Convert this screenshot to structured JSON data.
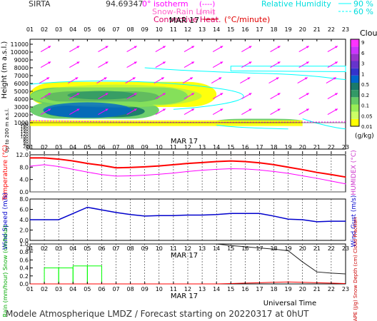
{
  "header": {
    "station": "SIRTA",
    "coord": "94.69347",
    "legend_isotherm": "0° isotherm",
    "legend_isotherm_dash": "(----)",
    "legend_snow": "Snow-Rain Limit",
    "legend_snow_dash": "(----)",
    "legend_conv": "Convective Heat.",
    "legend_conv_unit": "(°C/minute)",
    "legend_rh": "Relative Humidity",
    "legend_rh_90": "90 %",
    "legend_rh_60": "60 %"
  },
  "footer": {
    "title": "Modele Atmospherique LMDZ / Forecast starting on 20220317 at 0hUT",
    "universal_time": "Universal Time"
  },
  "colors": {
    "magenta": "#ff00ff",
    "cyan": "#00ffff",
    "red": "#ff0000",
    "blue": "#0000cc",
    "green": "#00ff00",
    "cloud_scale": [
      "#ffff00",
      "#ccff66",
      "#99ee55",
      "#66cc66",
      "#339966",
      "#1a7a6a",
      "#0066cc",
      "#3333cc",
      "#6633cc",
      "#9933cc",
      "#cc33ff",
      "#ff33ff"
    ]
  },
  "chart_data": [
    {
      "type": "heatmap",
      "panel": "clouds",
      "date_label": "MAR 17",
      "ylabel": "Height (m a.s.l.)",
      "ylabel_extra": "Up to 200 m a.s.l.",
      "x_ticks": [
        "01",
        "02",
        "03",
        "04",
        "05",
        "06",
        "07",
        "08",
        "09",
        "10",
        "11",
        "12",
        "13",
        "14",
        "15",
        "16",
        "17",
        "18",
        "19",
        "20",
        "21",
        "22",
        "23"
      ],
      "y_ticks_upper": [
        "11000",
        "10000",
        "9000",
        "8000",
        "7000",
        "6000",
        "5000",
        "4000",
        "3000",
        "2000",
        "1000"
      ],
      "y_ticks_lower": [
        "200",
        "180",
        "160",
        "140",
        "120",
        "100",
        "80",
        "60",
        "40",
        "20",
        "0"
      ],
      "colorbar_title": "Clouds",
      "colorbar_labels": [
        "9",
        "6",
        "3",
        "1",
        "0.5",
        "0.2",
        "0.1",
        "0.05",
        "0.01"
      ],
      "colorbar_unit": "(g/kg)",
      "cloud_layers": [
        {
          "hours": [
            1,
            14
          ],
          "height_m": [
            3000,
            6200
          ],
          "level": "0.01"
        },
        {
          "hours": [
            1,
            12
          ],
          "height_m": [
            3300,
            5500
          ],
          "level": "0.05"
        },
        {
          "hours": [
            2,
            10
          ],
          "height_m": [
            3600,
            5000
          ],
          "level": "0.2"
        },
        {
          "hours": [
            1,
            10
          ],
          "height_m": [
            1500,
            3700
          ],
          "level": "0.05"
        },
        {
          "hours": [
            2,
            9
          ],
          "height_m": [
            1700,
            3200
          ],
          "level": "0.2"
        },
        {
          "hours": [
            14,
            20
          ],
          "height_m": [
            900,
            1500
          ],
          "level": "0.05"
        }
      ]
    },
    {
      "type": "line",
      "panel": "temperature",
      "ylabel": "Temperature (°C)",
      "ylabel_right": "HUMIDEX (°C)",
      "y_ticks": [
        "12.0",
        "8.0",
        "4.0",
        "0.0"
      ],
      "ylim": [
        0,
        12
      ],
      "x": [
        1,
        2,
        3,
        4,
        5,
        6,
        7,
        8,
        9,
        10,
        11,
        12,
        13,
        14,
        15,
        16,
        17,
        18,
        19,
        20,
        21,
        22,
        23
      ],
      "series": [
        {
          "name": "Temperature",
          "values": [
            11.0,
            11.0,
            10.6,
            10.0,
            9.2,
            8.6,
            7.8,
            7.9,
            8.1,
            8.4,
            8.8,
            9.2,
            9.5,
            9.8,
            10.0,
            9.8,
            9.4,
            8.8,
            8.0,
            7.2,
            6.3,
            5.6,
            4.8
          ]
        },
        {
          "name": "HUMIDEX",
          "values": [
            8.3,
            8.8,
            8.2,
            7.3,
            6.4,
            5.6,
            5.1,
            5.2,
            5.4,
            5.7,
            6.1,
            6.6,
            7.0,
            7.3,
            7.5,
            7.4,
            7.1,
            6.6,
            6.0,
            5.2,
            4.4,
            3.5,
            2.6
          ]
        }
      ]
    },
    {
      "type": "line",
      "panel": "wind",
      "ylabel": "Wind Speed (m/s)",
      "ylabel_right": "Wind Gust (m/s)",
      "y_ticks": [
        "8.0",
        "6.0",
        "4.0",
        "2.0",
        "0.0"
      ],
      "ylim": [
        0,
        8
      ],
      "x": [
        1,
        2,
        3,
        4,
        5,
        6,
        7,
        8,
        9,
        10,
        11,
        12,
        13,
        14,
        15,
        16,
        17,
        18,
        19,
        20,
        21,
        22,
        23
      ],
      "series": [
        {
          "name": "Wind Speed",
          "values": [
            4.0,
            4.0,
            4.0,
            5.2,
            6.4,
            5.9,
            5.4,
            5.0,
            4.7,
            4.8,
            4.8,
            4.9,
            4.9,
            5.0,
            5.2,
            5.2,
            5.2,
            4.7,
            4.1,
            4.0,
            3.6,
            3.7,
            3.7
          ]
        }
      ]
    },
    {
      "type": "line",
      "panel": "precipitation",
      "date_label": "MAR 17",
      "ylabel": "Rain (mm/hour) Snow (cm/hour)",
      "ylabel_right": "CAPE (J/g) Snow Depth (cm) Cloud Fraction",
      "y_ticks": [
        "1.0",
        "0.8",
        "0.6",
        "0.4",
        "0.2",
        "0.0"
      ],
      "ylim": [
        0,
        1
      ],
      "x": [
        1,
        2,
        3,
        4,
        5,
        6,
        7,
        8,
        9,
        10,
        11,
        12,
        13,
        14,
        15,
        16,
        17,
        18,
        19,
        20,
        21,
        22,
        23
      ],
      "series": [
        {
          "name": "Rain",
          "type": "bar",
          "values": [
            0,
            0.4,
            0.4,
            0.45,
            0.45,
            0,
            0,
            0,
            0,
            0,
            0,
            0,
            0,
            0,
            0,
            0,
            0,
            0,
            0,
            0,
            0,
            0,
            0
          ]
        },
        {
          "name": "Cloud Fraction",
          "values": [
            1.0,
            1.0,
            1.0,
            1.0,
            1.0,
            1.0,
            1.0,
            1.0,
            1.0,
            1.0,
            1.0,
            1.0,
            1.0,
            1.0,
            0.96,
            0.93,
            0.9,
            0.87,
            0.83,
            0.55,
            0.3,
            0.27,
            0.25
          ]
        },
        {
          "name": "CAPE",
          "values": [
            0.0,
            0.0,
            0.0,
            0.0,
            0.0,
            0.0,
            0.0,
            0.0,
            0.0,
            0.0,
            0.0,
            0.0,
            0.0,
            0.0,
            0.01,
            0.02,
            0.03,
            0.04,
            0.05,
            0.04,
            0.03,
            0.02,
            0.01
          ]
        }
      ]
    }
  ]
}
